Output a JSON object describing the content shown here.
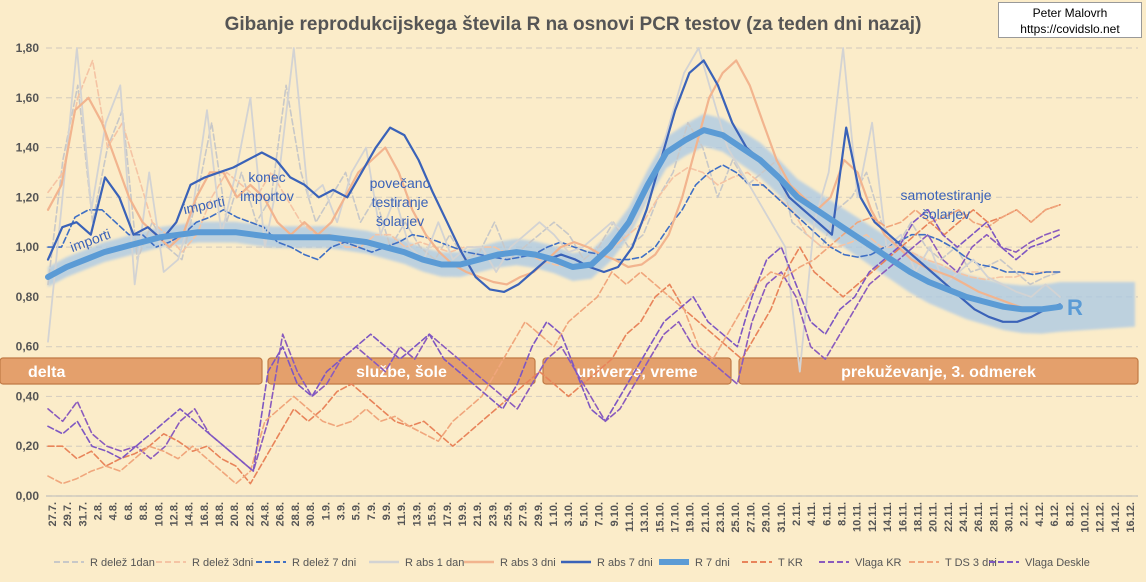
{
  "credit": {
    "author": "Peter Malovrh",
    "url": "https://covidslo.net"
  },
  "chart_data": {
    "type": "line",
    "title": "Gibanje reprodukcijskega števila R na osnovi PCR testov (za teden dni nazaj)",
    "xlabel": "",
    "ylabel": "",
    "ylim": [
      0,
      1.8
    ],
    "yticks": [
      "0,00",
      "0,20",
      "0,40",
      "0,60",
      "0,80",
      "1,00",
      "1,20",
      "1,40",
      "1,60",
      "1,80"
    ],
    "grid": true,
    "legend_position": "bottom",
    "x_ticks": [
      "27.7.",
      "29.7.",
      "31.7.",
      "2.8.",
      "4.8.",
      "6.8.",
      "8.8.",
      "10.8.",
      "12.8.",
      "14.8.",
      "16.8.",
      "18.8.",
      "20.8.",
      "22.8.",
      "24.8.",
      "26.8.",
      "28.8.",
      "30.8.",
      "1.9.",
      "3.9.",
      "5.9.",
      "7.9.",
      "9.9.",
      "11.9.",
      "13.9.",
      "15.9.",
      "17.9.",
      "19.9.",
      "21.9.",
      "23.9.",
      "25.9.",
      "27.9.",
      "29.9.",
      "1.10.",
      "3.10.",
      "5.10.",
      "7.10.",
      "9.10.",
      "11.10.",
      "13.10.",
      "15.10.",
      "17.10.",
      "19.10.",
      "21.10.",
      "23.10.",
      "25.10.",
      "27.10.",
      "29.10.",
      "31.10.",
      "2.11.",
      "4.11.",
      "6.11.",
      "8.11.",
      "10.11.",
      "12.11.",
      "14.11.",
      "16.11.",
      "18.11.",
      "20.11.",
      "22.11.",
      "24.11.",
      "26.11.",
      "28.11.",
      "30.11.",
      "2.12.",
      "4.12.",
      "6.12.",
      "8.12.",
      "10.12.",
      "12.12.",
      "14.12.",
      "16.12."
    ],
    "periods": [
      "delta",
      "službe, šole",
      "univerze, vreme",
      "prekuževanje, 3. odmerek"
    ],
    "annotations": [
      "importi",
      "importi",
      "konec\nimportov",
      "povečano\ntestiranje\nšolarjev",
      "samotestiranje\nšolarjev",
      "R"
    ],
    "series": [
      {
        "name": "R delež 1dan",
        "color": "#c8c8c8",
        "style": "dashed",
        "values": [
          0.85,
          1.35,
          1.65,
          1.1,
          1.4,
          1.55,
          0.95,
          1.1,
          1.0,
          0.95,
          1.2,
          1.5,
          1.1,
          1.3,
          1.1,
          1.2,
          1.65,
          1.3,
          1.1,
          1.2,
          1.3,
          1.1,
          1.2,
          1.0,
          1.1,
          1.0,
          0.95,
          1.05,
          0.95,
          0.98,
          1.1,
          0.95,
          1.0,
          1.05,
          1.1,
          1.05,
          0.95,
          1.0,
          1.1,
          1.0,
          1.05,
          1.2,
          1.3,
          1.5,
          1.4,
          1.2,
          1.35,
          1.25,
          1.3,
          1.35,
          1.1,
          1.05,
          1.0,
          1.15,
          1.2,
          1.3,
          1.1,
          1.0,
          1.1,
          1.0,
          0.95,
          1.0,
          0.9,
          0.92,
          0.95,
          0.9,
          0.85,
          0.88,
          0.9
        ]
      },
      {
        "name": "R delež 3dni",
        "color": "#f5c4a4",
        "style": "dashed",
        "values": [
          1.22,
          1.3,
          1.6,
          1.75,
          1.4,
          1.5,
          1.3,
          1.1,
          1.05,
          0.98,
          1.05,
          1.2,
          1.3,
          1.25,
          1.2,
          1.3,
          1.2,
          1.1,
          1.05,
          1.05,
          1.0,
          1.0,
          1.05,
          1.05,
          1.0,
          1.02,
          1.0,
          0.98,
          1.0,
          1.0,
          1.0,
          0.97,
          0.98,
          0.95,
          0.93,
          0.92,
          0.93,
          0.95,
          1.0,
          1.05,
          1.1,
          1.2,
          1.28,
          1.32,
          1.3,
          1.25,
          1.28,
          1.3,
          1.25,
          1.2,
          1.15,
          1.05,
          1.0,
          1.0,
          1.02,
          1.05,
          1.0,
          1.0,
          0.98,
          0.95,
          0.93,
          0.9,
          0.88,
          0.87,
          0.88,
          0.88,
          0.9,
          0.9,
          0.9
        ]
      },
      {
        "name": "R delež 7 dni",
        "color": "#3f6fc4",
        "style": "dashed",
        "values": [
          1.0,
          1.0,
          1.12,
          1.15,
          1.15,
          1.1,
          1.05,
          1.05,
          1.0,
          1.02,
          1.05,
          1.1,
          1.12,
          1.15,
          1.12,
          1.1,
          1.08,
          1.02,
          1.0,
          0.97,
          0.95,
          1.0,
          1.02,
          1.0,
          0.98,
          1.0,
          1.02,
          1.05,
          1.04,
          1.02,
          1.0,
          0.98,
          0.97,
          0.96,
          0.95,
          0.96,
          0.97,
          1.0,
          1.02,
          1.0,
          0.98,
          0.97,
          0.95,
          0.95,
          0.96,
          1.0,
          1.08,
          1.15,
          1.25,
          1.3,
          1.33,
          1.3,
          1.25,
          1.25,
          1.2,
          1.15,
          1.1,
          1.05,
          1.0,
          0.97,
          0.96,
          0.97,
          1.0,
          1.02,
          1.05,
          1.05,
          1.03,
          1.0,
          0.96,
          0.93,
          0.92,
          0.9,
          0.9,
          0.89,
          0.9,
          0.9
        ]
      },
      {
        "name": "R abs 1 dan",
        "color": "#d3d3d3",
        "style": "solid",
        "values": [
          0.62,
          1.2,
          1.8,
          1.15,
          1.5,
          1.65,
          0.85,
          1.3,
          0.9,
          0.95,
          1.15,
          1.55,
          1.05,
          1.3,
          1.6,
          1.0,
          1.3,
          1.8,
          1.2,
          1.25,
          1.1,
          1.3,
          1.4,
          1.05,
          1.2,
          1.0,
          0.95,
          1.1,
          0.95,
          1.0,
          1.0,
          0.9,
          1.0,
          1.05,
          1.1,
          1.05,
          0.98,
          1.0,
          1.05,
          1.1,
          1.05,
          1.15,
          1.3,
          1.5,
          1.7,
          1.8,
          1.6,
          1.4,
          1.3,
          1.2,
          1.1,
          1.0,
          0.5,
          1.1,
          1.3,
          1.8,
          1.2,
          1.5,
          1.0,
          1.05,
          0.9,
          1.0,
          0.85,
          0.9,
          0.95,
          0.88,
          0.85,
          0.82,
          0.8,
          0.85,
          0.8
        ]
      },
      {
        "name": "R abs 3 dni",
        "color": "#f2b48e",
        "style": "solid",
        "values": [
          1.15,
          1.25,
          1.55,
          1.6,
          1.5,
          1.35,
          1.2,
          1.1,
          1.05,
          1.0,
          1.05,
          1.2,
          1.3,
          1.3,
          1.2,
          1.25,
          1.2,
          1.1,
          1.05,
          1.1,
          1.05,
          1.1,
          1.2,
          1.3,
          1.35,
          1.4,
          1.3,
          1.15,
          1.05,
          0.98,
          0.93,
          0.9,
          0.88,
          0.86,
          0.85,
          0.88,
          0.9,
          0.95,
          1.0,
          1.02,
          1.0,
          0.97,
          0.95,
          0.92,
          0.93,
          0.97,
          1.05,
          1.2,
          1.4,
          1.6,
          1.7,
          1.75,
          1.65,
          1.5,
          1.35,
          1.25,
          1.2,
          1.15,
          1.2,
          1.35,
          1.3,
          1.15,
          1.05,
          1.0,
          0.95,
          0.92,
          0.9,
          0.88,
          0.85,
          0.82,
          0.8,
          0.78,
          0.76,
          0.75,
          0.75,
          0.76
        ]
      },
      {
        "name": "R abs 7 dni",
        "color": "#3a62b8",
        "style": "solid",
        "values": [
          0.95,
          1.08,
          1.1,
          1.05,
          1.28,
          1.2,
          1.05,
          1.08,
          1.03,
          1.1,
          1.25,
          1.28,
          1.3,
          1.32,
          1.35,
          1.38,
          1.35,
          1.28,
          1.25,
          1.2,
          1.23,
          1.2,
          1.3,
          1.4,
          1.48,
          1.45,
          1.35,
          1.22,
          1.1,
          0.98,
          0.88,
          0.83,
          0.82,
          0.85,
          0.9,
          0.95,
          0.97,
          0.95,
          0.92,
          0.9,
          0.92,
          1.0,
          1.15,
          1.35,
          1.55,
          1.7,
          1.75,
          1.65,
          1.5,
          1.4,
          1.35,
          1.3,
          1.2,
          1.15,
          1.1,
          1.05,
          1.48,
          1.2,
          1.1,
          1.05,
          1.0,
          0.95,
          0.9,
          0.85,
          0.8,
          0.75,
          0.72,
          0.7,
          0.7,
          0.72,
          0.75,
          0.77
        ]
      },
      {
        "name": "R 7 dni",
        "color": "#5b9bd5",
        "style": "thick",
        "values": [
          0.88,
          0.92,
          0.95,
          0.98,
          1.0,
          1.02,
          1.04,
          1.05,
          1.06,
          1.06,
          1.06,
          1.05,
          1.04,
          1.04,
          1.04,
          1.04,
          1.03,
          1.02,
          1.0,
          0.98,
          0.95,
          0.93,
          0.93,
          0.95,
          0.97,
          0.98,
          0.97,
          0.95,
          0.92,
          0.93,
          1.0,
          1.1,
          1.25,
          1.38,
          1.43,
          1.47,
          1.45,
          1.4,
          1.35,
          1.28,
          1.2,
          1.15,
          1.1,
          1.05,
          1.0,
          0.95,
          0.9,
          0.86,
          0.83,
          0.8,
          0.78,
          0.76,
          0.75,
          0.75,
          0.76
        ]
      },
      {
        "name": "T KR",
        "color": "#e8845a",
        "style": "dashed",
        "values": [
          0.2,
          0.2,
          0.15,
          0.18,
          0.12,
          0.15,
          0.17,
          0.2,
          0.25,
          0.22,
          0.18,
          0.2,
          0.15,
          0.12,
          0.05,
          0.15,
          0.25,
          0.35,
          0.3,
          0.35,
          0.42,
          0.45,
          0.4,
          0.35,
          0.3,
          0.28,
          0.3,
          0.25,
          0.2,
          0.25,
          0.3,
          0.35,
          0.4,
          0.45,
          0.5,
          0.45,
          0.4,
          0.45,
          0.5,
          0.55,
          0.65,
          0.7,
          0.8,
          0.85,
          0.75,
          0.7,
          0.65,
          0.6,
          0.55,
          0.65,
          0.75,
          0.9,
          1.0,
          0.9,
          0.85,
          0.8,
          0.85,
          0.9,
          0.95,
          1.0,
          1.05,
          1.1,
          1.05,
          1.1,
          1.15,
          1.1,
          1.12,
          1.15,
          1.1,
          1.15,
          1.17
        ]
      },
      {
        "name": "Vlaga KR",
        "color": "#8a5bbd",
        "style": "dashed",
        "values": [
          0.35,
          0.3,
          0.38,
          0.25,
          0.2,
          0.18,
          0.2,
          0.15,
          0.2,
          0.3,
          0.35,
          0.25,
          0.2,
          0.15,
          0.1,
          0.3,
          0.65,
          0.5,
          0.4,
          0.45,
          0.55,
          0.6,
          0.55,
          0.5,
          0.6,
          0.55,
          0.65,
          0.6,
          0.55,
          0.5,
          0.45,
          0.4,
          0.35,
          0.45,
          0.55,
          0.6,
          0.5,
          0.4,
          0.3,
          0.35,
          0.45,
          0.55,
          0.65,
          0.7,
          0.6,
          0.55,
          0.5,
          0.45,
          0.7,
          0.85,
          0.9,
          0.8,
          0.6,
          0.55,
          0.65,
          0.75,
          0.85,
          0.9,
          0.95,
          1.0,
          1.05,
          0.95,
          0.9,
          1.0,
          1.05,
          1.0,
          0.98,
          1.02,
          1.05,
          1.07
        ]
      },
      {
        "name": "T DS 3 dni",
        "color": "#f0a67c",
        "style": "dashed",
        "values": [
          0.08,
          0.05,
          0.07,
          0.1,
          0.12,
          0.1,
          0.15,
          0.2,
          0.18,
          0.15,
          0.2,
          0.15,
          0.1,
          0.05,
          0.1,
          0.3,
          0.35,
          0.4,
          0.35,
          0.3,
          0.28,
          0.3,
          0.35,
          0.3,
          0.32,
          0.28,
          0.25,
          0.22,
          0.3,
          0.35,
          0.4,
          0.5,
          0.6,
          0.7,
          0.65,
          0.6,
          0.7,
          0.75,
          0.8,
          0.9,
          0.85,
          0.9,
          0.85,
          0.8,
          0.75,
          0.6,
          0.55,
          0.65,
          0.75,
          0.85,
          0.9,
          0.88,
          0.92,
          0.95,
          1.0,
          1.05,
          1.1,
          1.12,
          1.08,
          1.1,
          1.15,
          1.1,
          1.12,
          1.15,
          1.1,
          1.08,
          1.12,
          1.15,
          1.1,
          1.15,
          1.17
        ]
      },
      {
        "name": "Vlaga Deskle",
        "color": "#7e57c2",
        "style": "dashed",
        "values": [
          0.28,
          0.25,
          0.3,
          0.2,
          0.18,
          0.15,
          0.2,
          0.25,
          0.3,
          0.35,
          0.3,
          0.25,
          0.2,
          0.15,
          0.1,
          0.5,
          0.6,
          0.45,
          0.4,
          0.5,
          0.55,
          0.6,
          0.65,
          0.6,
          0.55,
          0.6,
          0.65,
          0.55,
          0.5,
          0.45,
          0.4,
          0.35,
          0.45,
          0.6,
          0.7,
          0.65,
          0.5,
          0.35,
          0.3,
          0.4,
          0.5,
          0.6,
          0.7,
          0.75,
          0.8,
          0.7,
          0.65,
          0.6,
          0.8,
          0.95,
          1.0,
          0.85,
          0.7,
          0.65,
          0.75,
          0.8,
          0.9,
          0.95,
          1.0,
          1.1,
          1.15,
          1.05,
          1.0,
          1.05,
          1.1,
          1.0,
          0.95,
          1.0,
          1.02,
          1.05
        ]
      }
    ]
  }
}
